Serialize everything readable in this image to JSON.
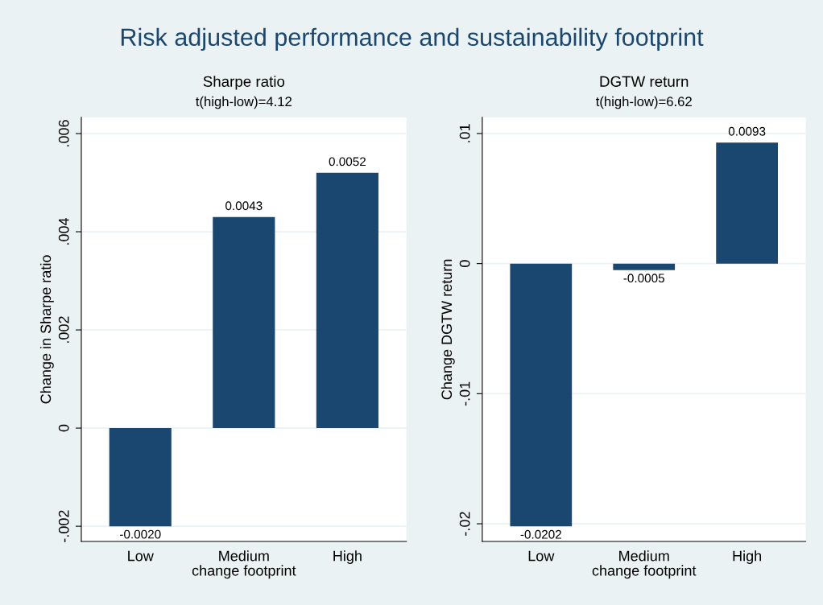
{
  "chart_data": [
    {
      "type": "bar",
      "title": "Sharpe ratio",
      "subtitle": "t(high-low)=4.12",
      "annotations": [
        "Risk adjusted performance and sustainability footprint"
      ],
      "xlabel": "change footprint",
      "ylabel": "Change in Sharpe ratio",
      "categories": [
        "Low",
        "Medium",
        "High"
      ],
      "values": [
        -0.002,
        0.0043,
        0.0052
      ],
      "value_labels": [
        "-0.0020",
        "0.0043",
        "0.0052"
      ],
      "color": "#1a476f",
      "ylim": [
        -0.00231,
        0.00633
      ],
      "yticks": [
        {
          "value": -0.002,
          "label": "-.002"
        },
        0,
        {
          "value": 0.002,
          "label": ".002"
        },
        {
          "value": 0.004,
          "label": ".004"
        },
        {
          "value": 0.006,
          "label": ".006"
        }
      ],
      "grid": "y"
    },
    {
      "type": "bar",
      "title": "DGTW return",
      "subtitle": "t(high-low)=6.62",
      "xlabel": "change footprint",
      "ylabel": "Change DGTW return",
      "categories": [
        "Low",
        "Medium",
        "High"
      ],
      "values": [
        -0.0202,
        -0.0005,
        0.0093
      ],
      "value_labels": [
        "-0.0202",
        "-0.0005",
        "0.0093"
      ],
      "color": "#1a476f",
      "ylim": [
        -0.02136,
        0.01124
      ],
      "yticks": [
        {
          "value": -0.02,
          "label": "-.02"
        },
        {
          "value": -0.01,
          "label": "-.01"
        },
        0,
        {
          "value": 0.01,
          "label": ".01"
        }
      ],
      "grid": "y"
    }
  ]
}
